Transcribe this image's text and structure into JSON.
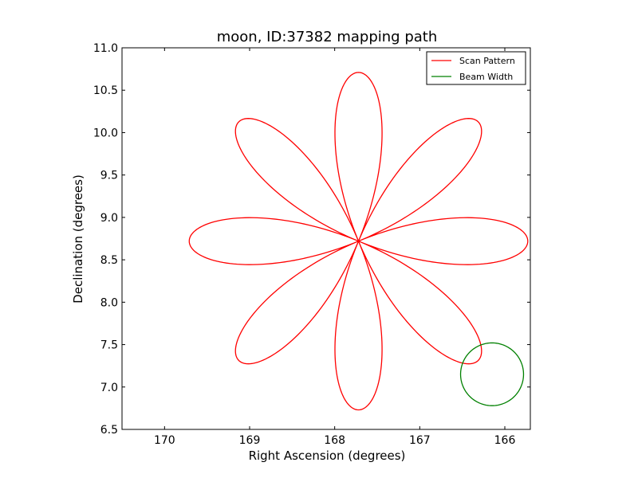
{
  "chart_data": {
    "type": "line",
    "title": "moon, ID:37382 mapping path",
    "xlabel": "Right Ascension (degrees)",
    "ylabel": "Declination (degrees)",
    "xlim": [
      170.5,
      165.7
    ],
    "ylim": [
      6.5,
      11.0
    ],
    "xticks": [
      170,
      169,
      168,
      167,
      166
    ],
    "xtick_labels": [
      "170",
      "169",
      "168",
      "167",
      "166"
    ],
    "yticks": [
      6.5,
      7.0,
      7.5,
      8.0,
      8.5,
      9.0,
      9.5,
      10.0,
      10.5,
      11.0
    ],
    "ytick_labels": [
      "6.5",
      "7.0",
      "7.5",
      "8.0",
      "8.5",
      "9.0",
      "9.5",
      "10.0",
      "10.5",
      "11.0"
    ],
    "grid": false,
    "legend_position": "top-right",
    "series": [
      {
        "name": "Scan Pattern",
        "color": "#ff0000",
        "kind": "rose",
        "center": [
          167.72,
          8.72
        ],
        "radius": 1.99,
        "petals": 8,
        "start_angle_deg": 180
      },
      {
        "name": "Beam Width",
        "color": "#008000",
        "kind": "circle",
        "center": [
          166.15,
          7.15
        ],
        "radius": 0.37
      }
    ]
  }
}
